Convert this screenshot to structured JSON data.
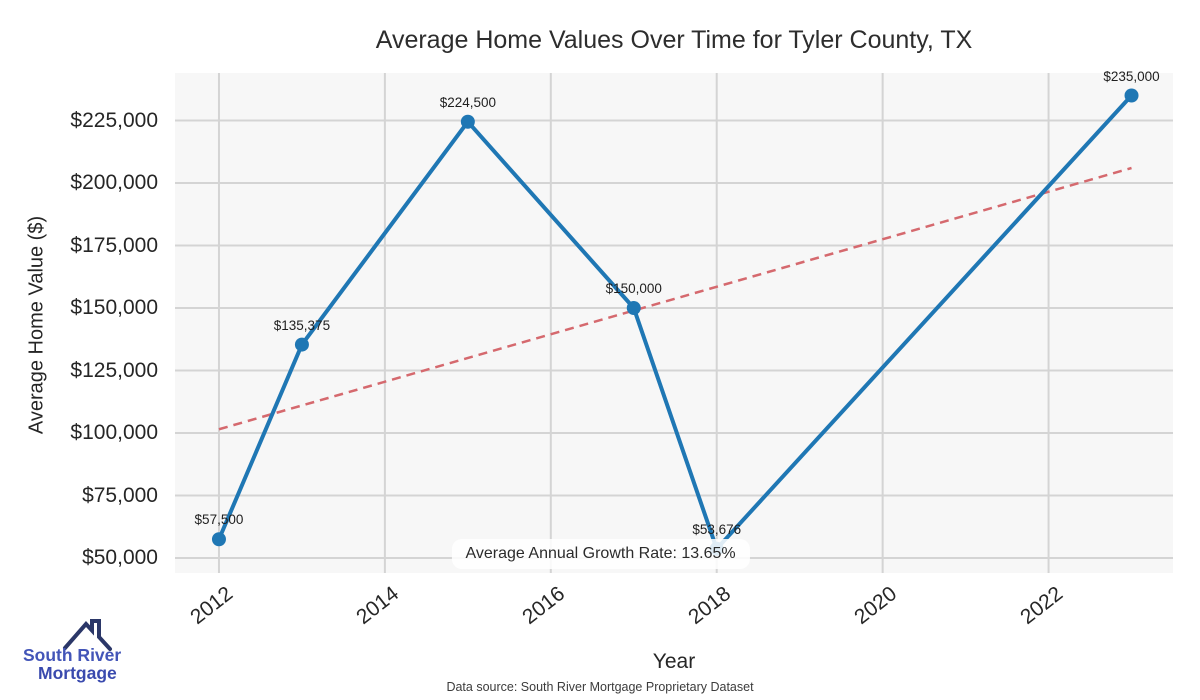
{
  "title": "Average Home Values Over Time for Tyler County, TX",
  "footer": {
    "source_note": "Data source: South River Mortgage Proprietary Dataset"
  },
  "logo": {
    "line1": "South River",
    "line2": "Mortgage",
    "text_color_1": "#4355b8",
    "text_color_2": "#3a4aae",
    "roof_color": "#2b3768"
  },
  "chart_data": {
    "type": "line",
    "title": "Average Home Values Over Time for Tyler County, TX",
    "xlabel": "Year",
    "ylabel": "Average Home Value ($)",
    "x": [
      2012,
      2013,
      2015,
      2017,
      2018,
      2023
    ],
    "values": [
      57500,
      135375,
      224500,
      150000,
      53676,
      235000
    ],
    "point_labels": [
      "$57,500",
      "$135,375",
      "$224,500",
      "$150,000",
      "$53,676",
      "$235,000"
    ],
    "series_color": "#1f77b4",
    "trend": {
      "x": [
        2012,
        2023
      ],
      "values": [
        101500,
        206000
      ],
      "color": "#d5696e",
      "style": "dashed"
    },
    "annotation": {
      "text": "Average Annual Growth Rate: 13.65%",
      "x": 2016.6,
      "y": 51600
    },
    "x_ticks": {
      "values": [
        2012,
        2014,
        2016,
        2018,
        2020,
        2022
      ],
      "labels": [
        "2012",
        "2014",
        "2016",
        "2018",
        "2020",
        "2022"
      ]
    },
    "y_ticks": {
      "values": [
        50000,
        75000,
        100000,
        125000,
        150000,
        175000,
        200000,
        225000
      ],
      "labels": [
        "$50,000",
        "$75,000",
        "$100,000",
        "$125,000",
        "$150,000",
        "$175,000",
        "$200,000",
        "$225,000"
      ]
    },
    "xlim": [
      2011.47,
      2023.5
    ],
    "ylim": [
      44000,
      244000
    ],
    "grid": true,
    "legend": "none",
    "plot_bg": "#f7f7f7",
    "grid_color": "#d4d4d4"
  }
}
